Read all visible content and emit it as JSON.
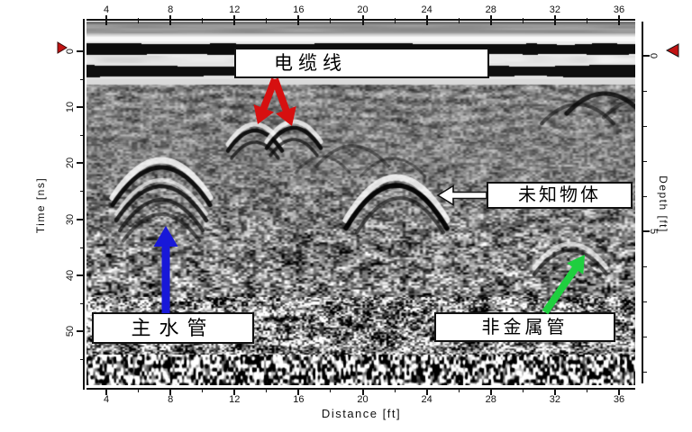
{
  "figure": {
    "kind": "GPR radargram B-scan",
    "palette": "grayscale"
  },
  "axes": {
    "distance": {
      "label": "Distance [ft]",
      "ticks": [
        "4",
        "8",
        "12",
        "16",
        "20",
        "24",
        "28",
        "32",
        "36"
      ]
    },
    "time": {
      "label": "Time [ns]",
      "ticks": [
        "0",
        "10",
        "20",
        "30",
        "40",
        "50"
      ]
    },
    "depth": {
      "label": "Depth [ft]",
      "ticks": [
        "0",
        "5"
      ]
    }
  },
  "annotations": {
    "cable": {
      "label": "电缆线"
    },
    "unknown": {
      "label": "未知物体"
    },
    "water_main": {
      "label": "主水管"
    },
    "nonmetal_pipe": {
      "label": "非金属管"
    }
  },
  "markers": {
    "left_triangle": "time-zero-marker",
    "right_triangle": "depth-zero-marker"
  },
  "colors": {
    "cable_arrow": "#d61010",
    "water_arrow": "#1818d8",
    "nonmetal_arrow": "#1fcf3f",
    "unknown_arrow": "#ffffff",
    "marker_red": "#c21212",
    "axis": "#111111"
  },
  "chart_data": {
    "type": "heatmap",
    "title": "",
    "xlabel": "Distance [ft]",
    "x_ticks": [
      4,
      8,
      12,
      16,
      20,
      24,
      28,
      32,
      36
    ],
    "xlim": [
      2.8,
      37.0
    ],
    "ylabel_left": "Time [ns]",
    "y_ticks_left": [
      0,
      10,
      20,
      30,
      40,
      50
    ],
    "ylim_time_ns": [
      -5.5,
      60.5
    ],
    "ylabel_right": "Depth [ft]",
    "y_ticks_right": [
      0,
      5
    ],
    "ylim_depth_ft": [
      -1.0,
      9.4
    ],
    "grid": false,
    "legend": "none",
    "content": "grayscale ground-penetrating-radar section: horizontal direct-wave black bands near time 0, speckle noise increasing with depth, hyperbolic reflections from buried objects",
    "features": [
      {
        "label": "电缆线",
        "meaning": "cable line",
        "x_ft": [
          13.2,
          15.7
        ],
        "time_ns": 14,
        "shape": "two small adjacent hyperbolas",
        "pointer": "two red arrows down from label box"
      },
      {
        "label": "主水管",
        "meaning": "water main",
        "x_ft": 7.4,
        "time_ns": 21,
        "shape": "strong stacked multi-ring hyperbola",
        "pointer": "blue arrow up"
      },
      {
        "label": "未知物体",
        "meaning": "unknown object",
        "x_ft": 22.0,
        "time_ns": 24,
        "shape": "single strong hyperbola",
        "pointer": "white arrow left"
      },
      {
        "label": "非金属管",
        "meaning": "non-metallic pipe",
        "x_ft": 32.8,
        "time_ns": 36,
        "shape": "faint hyperbola",
        "pointer": "green arrow up-right"
      }
    ],
    "markers": [
      {
        "type": "red triangle",
        "position": "left axis at time 0"
      },
      {
        "type": "red triangle",
        "position": "right axis at depth 0"
      }
    ]
  }
}
